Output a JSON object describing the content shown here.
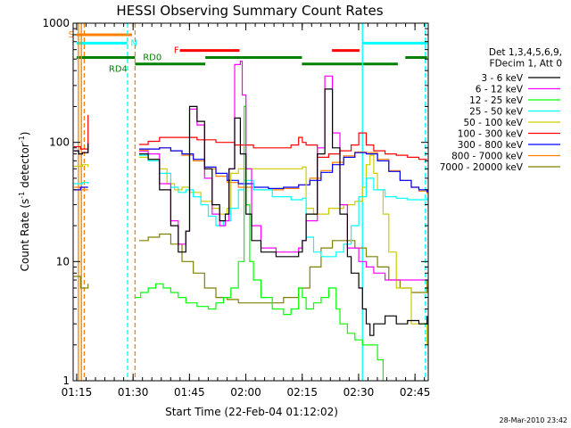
{
  "chart_data": {
    "type": "line",
    "title": "HESSI Observing Summary Count Rates",
    "xlabel": "Start Time (22-Feb-04 01:12:02)",
    "ylabel_pre": "Count Rate (s",
    "ylabel_sup1": "-1",
    "ylabel_mid": " detector",
    "ylabel_sup2": "-1",
    "ylabel_post": ")",
    "xlim": [
      2.03,
      96.5
    ],
    "ylim": [
      1,
      1000
    ],
    "yscale": "log",
    "x_unit": "minutes after 01:12:02",
    "x_ticks": [
      {
        "v": 2.97,
        "label": "01:15"
      },
      {
        "v": 17.97,
        "label": "01:30"
      },
      {
        "v": 32.97,
        "label": "01:45"
      },
      {
        "v": 47.97,
        "label": "02:00"
      },
      {
        "v": 62.97,
        "label": "02:15"
      },
      {
        "v": 77.97,
        "label": "02:30"
      },
      {
        "v": 92.97,
        "label": "02:45"
      }
    ],
    "y_ticks": [
      {
        "v": 1,
        "label": "1"
      },
      {
        "v": 10,
        "label": "10"
      },
      {
        "v": 100,
        "label": "100"
      },
      {
        "v": 1000,
        "label": "1000"
      }
    ],
    "legend_header": [
      "Det 1,3,4,5,6,9,",
      "FDecim 1, Att 0"
    ],
    "legend_position": "right",
    "series": [
      {
        "name": "3 - 6 keV",
        "color": "#000000",
        "x": [
          2.2,
          3.5,
          4.5,
          6.0,
          18.5,
          19.6,
          22,
          25,
          28,
          30,
          32,
          33,
          35,
          37,
          39,
          41,
          42.5,
          43.5,
          45,
          46.5,
          48,
          49.5,
          52,
          56,
          60,
          62,
          63,
          64,
          67,
          69,
          71,
          73,
          75,
          76,
          78,
          79,
          80,
          81,
          82,
          85,
          88,
          91,
          94,
          96.2
        ],
        "y": [
          85,
          80,
          82,
          98,
          null,
          80,
          72,
          40,
          20,
          12,
          18,
          200,
          150,
          60,
          30,
          22,
          25,
          60,
          160,
          80,
          25,
          15,
          12,
          11,
          11,
          12,
          15,
          25,
          80,
          280,
          90,
          25,
          11,
          8,
          6,
          4,
          3,
          2.4,
          3,
          3.5,
          3,
          3.2,
          3,
          3.5
        ]
      },
      {
        "name": "6 - 12 keV",
        "color": "#ff00ff",
        "x": [
          2.2,
          3.5,
          4.5,
          6.0,
          18.5,
          19.6,
          22,
          25,
          28,
          30,
          32,
          33,
          35,
          37,
          39,
          41,
          42.5,
          43.5,
          45,
          46.5,
          47,
          48,
          49.5,
          52,
          56,
          60,
          62,
          63,
          64,
          67,
          69,
          71,
          73,
          75,
          78,
          80,
          82,
          85,
          88,
          91,
          94,
          96.2
        ],
        "y": [
          85,
          80,
          82,
          98,
          null,
          84,
          80,
          45,
          22,
          14,
          18,
          190,
          140,
          50,
          25,
          20,
          22,
          60,
          450,
          480,
          250,
          60,
          20,
          13,
          12,
          12,
          13,
          15,
          22,
          90,
          360,
          120,
          30,
          13,
          10,
          9,
          8,
          7,
          7,
          7,
          7,
          7
        ]
      },
      {
        "name": "12 - 25 keV",
        "color": "#00ff00",
        "x": [
          18.6,
          20,
          22,
          24,
          26,
          28,
          30,
          32,
          35,
          38,
          40,
          42,
          44,
          46,
          47.5,
          48,
          49,
          50,
          52,
          55,
          58,
          60,
          62,
          63,
          64,
          66,
          68,
          70,
          72,
          73,
          75,
          77,
          79,
          81,
          83,
          84.5
        ],
        "y": [
          5,
          5.5,
          6,
          6.5,
          6,
          5.5,
          5,
          4.5,
          4.2,
          4,
          4.5,
          5,
          6,
          10,
          200,
          30,
          10,
          7,
          5,
          4,
          3.6,
          4,
          6,
          5,
          4,
          4.5,
          5,
          6,
          4,
          3,
          2.5,
          2.2,
          2,
          2,
          1.5,
          1.0
        ]
      },
      {
        "name": "25 - 50 keV",
        "color": "#00ffff",
        "x": [
          2.2,
          4.5,
          6.0,
          18.5,
          19.6,
          22,
          25,
          28,
          30,
          32,
          34,
          36,
          38,
          40,
          42,
          44,
          46,
          47.5,
          50,
          55,
          60,
          62,
          63,
          64,
          66,
          68,
          70,
          72,
          74,
          76,
          78,
          80,
          82,
          85,
          88,
          91,
          94,
          96.2
        ],
        "y": [
          45,
          46,
          45,
          null,
          78,
          70,
          55,
          42,
          38,
          40,
          35,
          30,
          24,
          20,
          22,
          28,
          40,
          48,
          40,
          35,
          33,
          33,
          34,
          16,
          12,
          11,
          11,
          12,
          14,
          20,
          35,
          50,
          40,
          35,
          34,
          33,
          33,
          34
        ]
      },
      {
        "name": "50 - 100 keV",
        "color": "#cccc00",
        "x": [
          2.2,
          4.5,
          6.0,
          18.5,
          19.6,
          22,
          25,
          27,
          29,
          31,
          33,
          36,
          39,
          41,
          43,
          44,
          46,
          48,
          50,
          55,
          60,
          62,
          63,
          64,
          66,
          70,
          74,
          77,
          79,
          80,
          81,
          82,
          83,
          84.5,
          86,
          88,
          92,
          96.2
        ],
        "y": [
          63,
          65,
          62,
          null,
          75,
          72,
          60,
          45,
          40,
          42,
          38,
          32,
          28,
          25,
          28,
          55,
          60,
          60,
          60,
          60,
          60,
          60,
          62,
          28,
          25,
          28,
          30,
          32,
          42,
          65,
          78,
          55,
          40,
          25,
          12,
          6,
          3,
          2
        ]
      },
      {
        "name": "100 - 300 keV",
        "color": "#ff0000",
        "x": [
          2.2,
          4.0,
          6.0,
          18.5,
          19.6,
          22,
          25,
          30,
          35,
          40,
          45,
          50,
          55,
          60,
          62,
          63,
          64,
          67,
          70,
          73,
          76,
          78,
          80,
          82,
          85,
          88,
          91,
          94,
          96.2
        ],
        "y": [
          92,
          88,
          170,
          null,
          96,
          102,
          110,
          110,
          105,
          100,
          95,
          90,
          90,
          95,
          110,
          100,
          95,
          75,
          80,
          85,
          95,
          120,
          95,
          85,
          80,
          78,
          75,
          72,
          72
        ]
      },
      {
        "name": "300 - 800 keV",
        "color": "#0000ff",
        "x": [
          2.2,
          4.0,
          6.0,
          18.5,
          19.6,
          22,
          25,
          28,
          31,
          34,
          37,
          40,
          43,
          46,
          50,
          54,
          58,
          62,
          65,
          68,
          71,
          74,
          77,
          80,
          83,
          86,
          89,
          92,
          94,
          96.2
        ],
        "y": [
          40,
          42,
          42,
          null,
          88,
          88,
          90,
          85,
          80,
          72,
          62,
          55,
          48,
          45,
          42,
          41,
          42,
          44,
          48,
          56,
          65,
          75,
          82,
          80,
          70,
          57,
          48,
          42,
          40,
          38
        ]
      },
      {
        "name": "800 - 7000 keV",
        "color": "#ff8000",
        "x": [
          2.2,
          4.0,
          6.0,
          18.5,
          19.6,
          22,
          25,
          28,
          31,
          34,
          37,
          40,
          43,
          46,
          50,
          54,
          58,
          62,
          65,
          68,
          71,
          74,
          77,
          80,
          83,
          86,
          89,
          92,
          94,
          96.2
        ],
        "y": [
          42,
          40,
          40,
          null,
          86,
          88,
          90,
          85,
          78,
          70,
          60,
          52,
          46,
          42,
          40,
          40,
          41,
          44,
          50,
          58,
          68,
          77,
          83,
          82,
          72,
          58,
          48,
          42,
          39,
          37
        ]
      },
      {
        "name": "7000 - 20000 keV",
        "color": "#808000",
        "x": [
          2.2,
          4.0,
          6.0,
          18.5,
          19.6,
          22,
          25,
          28,
          31,
          34,
          37,
          40,
          43,
          46,
          50,
          54,
          58,
          62,
          65,
          68,
          71,
          74,
          77,
          80,
          83,
          86,
          89,
          92,
          94,
          96.2
        ],
        "y": [
          7.5,
          6,
          6.5,
          null,
          15,
          16,
          17,
          14,
          10,
          8,
          6,
          5,
          4.8,
          4.5,
          4.5,
          4.5,
          5,
          6,
          9,
          13,
          15,
          15,
          13,
          11,
          9,
          7,
          6,
          5.5,
          5.5,
          7
        ]
      }
    ],
    "flags": [
      {
        "label": "S",
        "color": "#ff8000",
        "x0": 2.97,
        "x1": 17.7,
        "y": 800
      },
      {
        "label": "N",
        "color": "#00ffff",
        "x0": 2.97,
        "x1": 16.4,
        "y": 680
      },
      {
        "label": "F",
        "color": "#ff0000",
        "x0": 30.4,
        "x1": 46.3,
        "y": 590
      },
      {
        "label": "",
        "color": "#ff0000",
        "x0": 70.9,
        "x1": 78.2,
        "y": 590
      },
      {
        "label": "",
        "color": "#00ffff",
        "x0": 79.0,
        "x1": 96.2,
        "y": 680
      },
      {
        "label": "RD0",
        "color": "#008000",
        "x0": 2.97,
        "x1": 18.5,
        "y": 515
      },
      {
        "label": "",
        "color": "#008000",
        "x0": 37.2,
        "x1": 62.9,
        "y": 515
      },
      {
        "label": "",
        "color": "#008000",
        "x0": 90.4,
        "x1": 96.2,
        "y": 515
      },
      {
        "label": "RD4",
        "color": "#008000",
        "x0": 18.5,
        "x1": 37.2,
        "y": 455
      },
      {
        "label": "",
        "color": "#008000",
        "x0": 62.9,
        "x1": 88.4,
        "y": 455
      }
    ],
    "vlines": [
      {
        "x": 3.43,
        "color": "#ff8000",
        "dashed": false
      },
      {
        "x": 4.21,
        "color": "#ff8000",
        "dashed": false
      },
      {
        "x": 4.98,
        "color": "#ff8000",
        "dashed": true
      },
      {
        "x": 16.51,
        "color": "#00ffff",
        "dashed": true
      },
      {
        "x": 18.51,
        "color": "#ff8000",
        "dashed": true
      },
      {
        "x": 78.99,
        "color": "#00ffff",
        "dashed": false
      },
      {
        "x": 95.74,
        "color": "#00ffff",
        "dashed": true
      }
    ],
    "timestamp": "28-Mar-2010 23:42"
  }
}
